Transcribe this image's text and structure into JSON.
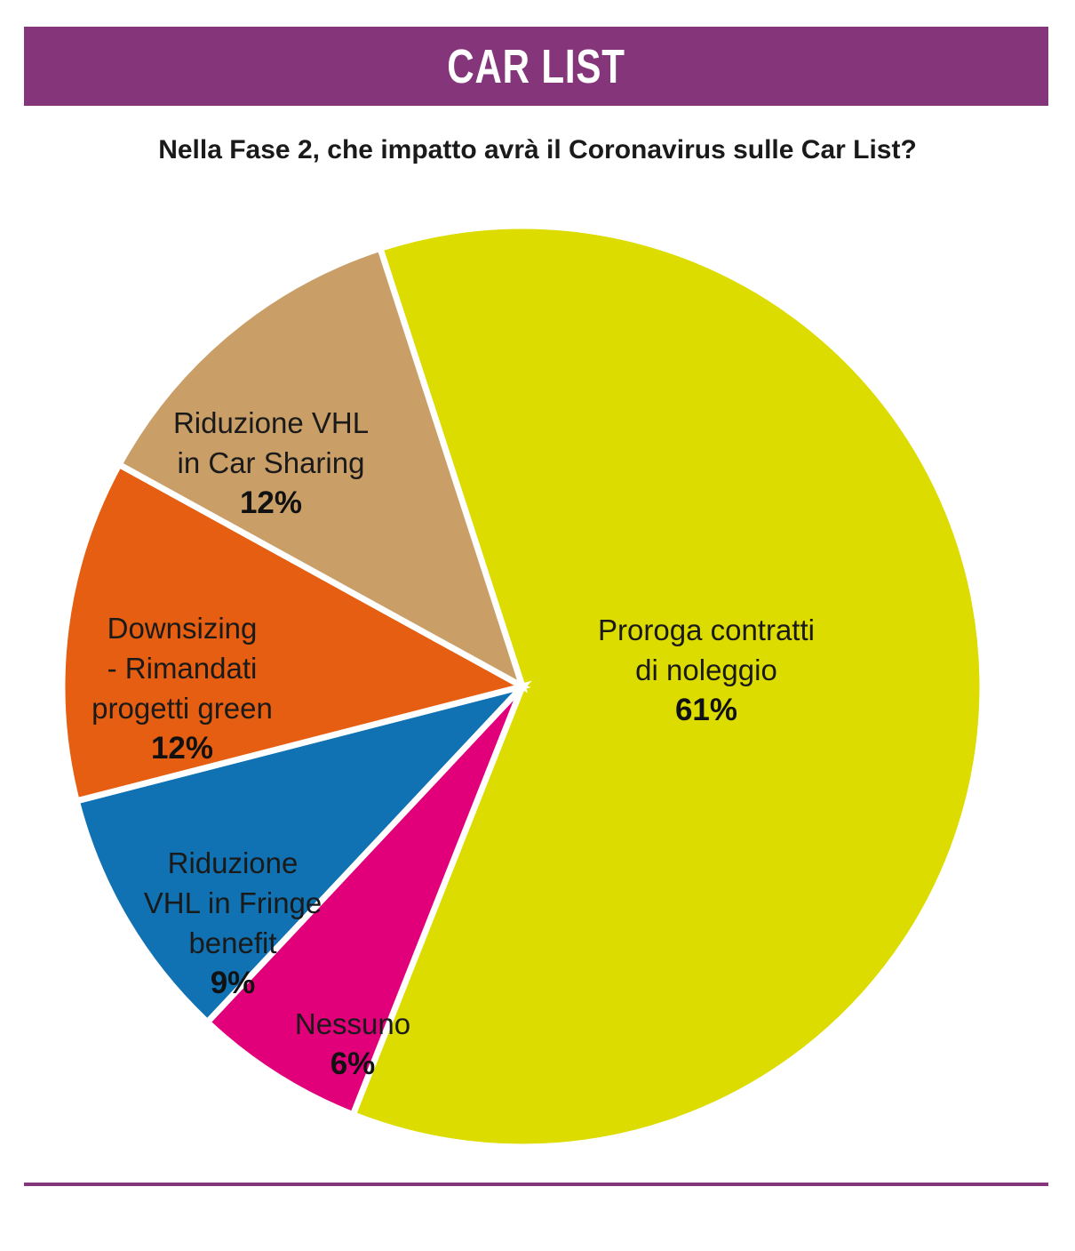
{
  "header": {
    "title": "CAR LIST"
  },
  "colors": {
    "banner": "#85357A",
    "rule": "#85357A"
  },
  "chart_data": {
    "type": "pie",
    "title": "Nella Fase 2, che impatto avrà il Coronavirus sulle Car List?",
    "slices": [
      {
        "label_lines": [
          "Proroga contratti",
          "di noleggio"
        ],
        "value": 61,
        "value_label": "61%",
        "color": "#DDDC00"
      },
      {
        "label_lines": [
          "Nessuno"
        ],
        "value": 6,
        "value_label": "6%",
        "color": "#E2007A"
      },
      {
        "label_lines": [
          "Riduzione",
          "VHL in Fringe",
          "benefit"
        ],
        "value": 9,
        "value_label": "9%",
        "color": "#1071B3"
      },
      {
        "label_lines": [
          "Downsizing",
          "- Rimandati",
          "progetti green"
        ],
        "value": 12,
        "value_label": "12%",
        "color": "#E65E11"
      },
      {
        "label_lines": [
          "Riduzione VHL",
          "in Car Sharing"
        ],
        "value": 12,
        "value_label": "12%",
        "color": "#C99E67"
      }
    ]
  }
}
